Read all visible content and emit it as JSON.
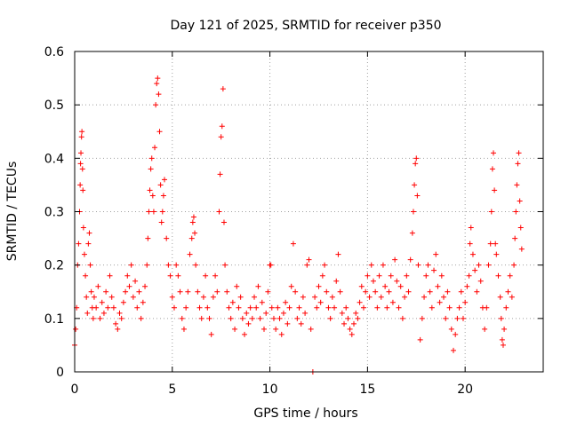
{
  "chart_data": {
    "type": "scatter",
    "title": "Day 121 of 2025, SRMTID for receiver p350",
    "xlabel": "GPS time / hours",
    "ylabel": "SRMTID / TECUs",
    "xlim": [
      0,
      24
    ],
    "ylim": [
      0,
      0.6
    ],
    "xticks": [
      0,
      5,
      10,
      15,
      20
    ],
    "yticks": [
      0,
      0.1,
      0.2,
      0.3,
      0.4,
      0.5,
      0.6
    ],
    "ytick_labels": [
      "0",
      "0.1",
      "0.2",
      "0.3",
      "0.4",
      "0.5",
      "0.6"
    ],
    "grid": true,
    "marker": "plus",
    "color": "#ff0000",
    "series": [
      {
        "name": "SRMTID",
        "points": [
          [
            0.0,
            0.05
          ],
          [
            0.05,
            0.08
          ],
          [
            0.1,
            0.12
          ],
          [
            0.15,
            0.2
          ],
          [
            0.2,
            0.24
          ],
          [
            0.25,
            0.3
          ],
          [
            0.28,
            0.35
          ],
          [
            0.3,
            0.39
          ],
          [
            0.32,
            0.41
          ],
          [
            0.35,
            0.44
          ],
          [
            0.37,
            0.45
          ],
          [
            0.4,
            0.38
          ],
          [
            0.42,
            0.34
          ],
          [
            0.45,
            0.27
          ],
          [
            0.5,
            0.22
          ],
          [
            0.55,
            0.18
          ],
          [
            0.6,
            0.14
          ],
          [
            0.65,
            0.11
          ],
          [
            0.7,
            0.24
          ],
          [
            0.75,
            0.26
          ],
          [
            0.8,
            0.2
          ],
          [
            0.85,
            0.15
          ],
          [
            0.9,
            0.12
          ],
          [
            0.95,
            0.1
          ],
          [
            1.0,
            0.14
          ],
          [
            1.1,
            0.12
          ],
          [
            1.2,
            0.16
          ],
          [
            1.3,
            0.1
          ],
          [
            1.4,
            0.13
          ],
          [
            1.5,
            0.11
          ],
          [
            1.6,
            0.15
          ],
          [
            1.7,
            0.12
          ],
          [
            1.8,
            0.18
          ],
          [
            1.9,
            0.14
          ],
          [
            2.0,
            0.12
          ],
          [
            2.1,
            0.09
          ],
          [
            2.2,
            0.08
          ],
          [
            2.3,
            0.11
          ],
          [
            2.4,
            0.1
          ],
          [
            2.5,
            0.13
          ],
          [
            2.6,
            0.15
          ],
          [
            2.7,
            0.18
          ],
          [
            2.8,
            0.16
          ],
          [
            2.9,
            0.2
          ],
          [
            3.0,
            0.14
          ],
          [
            3.1,
            0.17
          ],
          [
            3.2,
            0.12
          ],
          [
            3.3,
            0.15
          ],
          [
            3.4,
            0.1
          ],
          [
            3.5,
            0.13
          ],
          [
            3.6,
            0.16
          ],
          [
            3.7,
            0.2
          ],
          [
            3.75,
            0.25
          ],
          [
            3.8,
            0.3
          ],
          [
            3.85,
            0.34
          ],
          [
            3.9,
            0.38
          ],
          [
            3.95,
            0.4
          ],
          [
            4.0,
            0.33
          ],
          [
            4.05,
            0.3
          ],
          [
            4.1,
            0.42
          ],
          [
            4.15,
            0.5
          ],
          [
            4.2,
            0.54
          ],
          [
            4.25,
            0.55
          ],
          [
            4.3,
            0.52
          ],
          [
            4.35,
            0.45
          ],
          [
            4.4,
            0.35
          ],
          [
            4.45,
            0.28
          ],
          [
            4.5,
            0.3
          ],
          [
            4.55,
            0.33
          ],
          [
            4.6,
            0.36
          ],
          [
            4.7,
            0.25
          ],
          [
            4.8,
            0.2
          ],
          [
            4.9,
            0.18
          ],
          [
            5.0,
            0.14
          ],
          [
            5.1,
            0.12
          ],
          [
            5.2,
            0.2
          ],
          [
            5.3,
            0.18
          ],
          [
            5.4,
            0.15
          ],
          [
            5.5,
            0.1
          ],
          [
            5.6,
            0.08
          ],
          [
            5.7,
            0.12
          ],
          [
            5.8,
            0.15
          ],
          [
            5.9,
            0.22
          ],
          [
            6.0,
            0.25
          ],
          [
            6.05,
            0.28
          ],
          [
            6.1,
            0.29
          ],
          [
            6.15,
            0.26
          ],
          [
            6.2,
            0.2
          ],
          [
            6.3,
            0.15
          ],
          [
            6.4,
            0.12
          ],
          [
            6.5,
            0.1
          ],
          [
            6.6,
            0.14
          ],
          [
            6.7,
            0.18
          ],
          [
            6.8,
            0.12
          ],
          [
            6.9,
            0.1
          ],
          [
            7.0,
            0.07
          ],
          [
            7.1,
            0.14
          ],
          [
            7.2,
            0.18
          ],
          [
            7.3,
            0.15
          ],
          [
            7.4,
            0.3
          ],
          [
            7.45,
            0.37
          ],
          [
            7.5,
            0.44
          ],
          [
            7.55,
            0.46
          ],
          [
            7.6,
            0.53
          ],
          [
            7.65,
            0.28
          ],
          [
            7.7,
            0.2
          ],
          [
            7.8,
            0.15
          ],
          [
            7.9,
            0.12
          ],
          [
            8.0,
            0.1
          ],
          [
            8.1,
            0.13
          ],
          [
            8.2,
            0.08
          ],
          [
            8.3,
            0.16
          ],
          [
            8.4,
            0.12
          ],
          [
            8.5,
            0.14
          ],
          [
            8.6,
            0.1
          ],
          [
            8.7,
            0.07
          ],
          [
            8.8,
            0.11
          ],
          [
            8.9,
            0.09
          ],
          [
            9.0,
            0.12
          ],
          [
            9.1,
            0.1
          ],
          [
            9.2,
            0.14
          ],
          [
            9.3,
            0.12
          ],
          [
            9.4,
            0.16
          ],
          [
            9.5,
            0.1
          ],
          [
            9.6,
            0.13
          ],
          [
            9.7,
            0.08
          ],
          [
            9.8,
            0.11
          ],
          [
            9.9,
            0.15
          ],
          [
            10.0,
            0.2
          ],
          [
            10.05,
            0.2
          ],
          [
            10.1,
            0.12
          ],
          [
            10.2,
            0.1
          ],
          [
            10.3,
            0.08
          ],
          [
            10.4,
            0.12
          ],
          [
            10.5,
            0.1
          ],
          [
            10.6,
            0.07
          ],
          [
            10.7,
            0.11
          ],
          [
            10.8,
            0.13
          ],
          [
            10.9,
            0.09
          ],
          [
            11.0,
            0.12
          ],
          [
            11.1,
            0.16
          ],
          [
            11.2,
            0.24
          ],
          [
            11.3,
            0.15
          ],
          [
            11.4,
            0.1
          ],
          [
            11.5,
            0.12
          ],
          [
            11.6,
            0.09
          ],
          [
            11.7,
            0.14
          ],
          [
            11.8,
            0.11
          ],
          [
            11.9,
            0.2
          ],
          [
            12.0,
            0.21
          ],
          [
            12.1,
            0.08
          ],
          [
            12.2,
            0.0
          ],
          [
            12.3,
            0.14
          ],
          [
            12.4,
            0.12
          ],
          [
            12.5,
            0.16
          ],
          [
            12.6,
            0.13
          ],
          [
            12.7,
            0.18
          ],
          [
            12.8,
            0.2
          ],
          [
            12.9,
            0.15
          ],
          [
            13.0,
            0.12
          ],
          [
            13.1,
            0.1
          ],
          [
            13.2,
            0.14
          ],
          [
            13.3,
            0.12
          ],
          [
            13.4,
            0.17
          ],
          [
            13.5,
            0.22
          ],
          [
            13.6,
            0.15
          ],
          [
            13.7,
            0.11
          ],
          [
            13.8,
            0.09
          ],
          [
            13.9,
            0.12
          ],
          [
            14.0,
            0.1
          ],
          [
            14.1,
            0.08
          ],
          [
            14.2,
            0.07
          ],
          [
            14.3,
            0.09
          ],
          [
            14.4,
            0.11
          ],
          [
            14.5,
            0.1
          ],
          [
            14.6,
            0.13
          ],
          [
            14.7,
            0.16
          ],
          [
            14.8,
            0.12
          ],
          [
            14.9,
            0.15
          ],
          [
            15.0,
            0.18
          ],
          [
            15.1,
            0.14
          ],
          [
            15.2,
            0.2
          ],
          [
            15.3,
            0.17
          ],
          [
            15.4,
            0.15
          ],
          [
            15.5,
            0.12
          ],
          [
            15.6,
            0.18
          ],
          [
            15.7,
            0.14
          ],
          [
            15.8,
            0.2
          ],
          [
            15.9,
            0.16
          ],
          [
            16.0,
            0.12
          ],
          [
            16.1,
            0.15
          ],
          [
            16.2,
            0.18
          ],
          [
            16.3,
            0.13
          ],
          [
            16.4,
            0.21
          ],
          [
            16.5,
            0.17
          ],
          [
            16.6,
            0.12
          ],
          [
            16.7,
            0.16
          ],
          [
            16.8,
            0.1
          ],
          [
            16.9,
            0.14
          ],
          [
            17.0,
            0.18
          ],
          [
            17.1,
            0.15
          ],
          [
            17.2,
            0.21
          ],
          [
            17.3,
            0.26
          ],
          [
            17.35,
            0.3
          ],
          [
            17.4,
            0.35
          ],
          [
            17.45,
            0.39
          ],
          [
            17.5,
            0.4
          ],
          [
            17.55,
            0.33
          ],
          [
            17.6,
            0.2
          ],
          [
            17.7,
            0.06
          ],
          [
            17.8,
            0.1
          ],
          [
            17.9,
            0.14
          ],
          [
            18.0,
            0.18
          ],
          [
            18.1,
            0.2
          ],
          [
            18.2,
            0.15
          ],
          [
            18.3,
            0.12
          ],
          [
            18.4,
            0.19
          ],
          [
            18.5,
            0.22
          ],
          [
            18.6,
            0.16
          ],
          [
            18.7,
            0.13
          ],
          [
            18.8,
            0.18
          ],
          [
            18.9,
            0.14
          ],
          [
            19.0,
            0.1
          ],
          [
            19.1,
            0.15
          ],
          [
            19.2,
            0.12
          ],
          [
            19.3,
            0.08
          ],
          [
            19.4,
            0.04
          ],
          [
            19.5,
            0.07
          ],
          [
            19.6,
            0.1
          ],
          [
            19.7,
            0.12
          ],
          [
            19.8,
            0.15
          ],
          [
            19.9,
            0.1
          ],
          [
            20.0,
            0.13
          ],
          [
            20.1,
            0.16
          ],
          [
            20.2,
            0.18
          ],
          [
            20.25,
            0.24
          ],
          [
            20.3,
            0.27
          ],
          [
            20.4,
            0.22
          ],
          [
            20.5,
            0.19
          ],
          [
            20.6,
            0.15
          ],
          [
            20.7,
            0.2
          ],
          [
            20.8,
            0.17
          ],
          [
            20.9,
            0.12
          ],
          [
            21.0,
            0.08
          ],
          [
            21.1,
            0.12
          ],
          [
            21.2,
            0.2
          ],
          [
            21.3,
            0.24
          ],
          [
            21.35,
            0.3
          ],
          [
            21.4,
            0.38
          ],
          [
            21.45,
            0.41
          ],
          [
            21.5,
            0.34
          ],
          [
            21.55,
            0.24
          ],
          [
            21.6,
            0.22
          ],
          [
            21.7,
            0.18
          ],
          [
            21.8,
            0.14
          ],
          [
            21.85,
            0.1
          ],
          [
            21.9,
            0.06
          ],
          [
            21.95,
            0.05
          ],
          [
            22.0,
            0.08
          ],
          [
            22.1,
            0.12
          ],
          [
            22.2,
            0.15
          ],
          [
            22.3,
            0.18
          ],
          [
            22.4,
            0.14
          ],
          [
            22.5,
            0.2
          ],
          [
            22.55,
            0.25
          ],
          [
            22.6,
            0.3
          ],
          [
            22.65,
            0.35
          ],
          [
            22.7,
            0.39
          ],
          [
            22.75,
            0.41
          ],
          [
            22.8,
            0.32
          ],
          [
            22.85,
            0.27
          ],
          [
            22.9,
            0.23
          ]
        ]
      }
    ]
  }
}
